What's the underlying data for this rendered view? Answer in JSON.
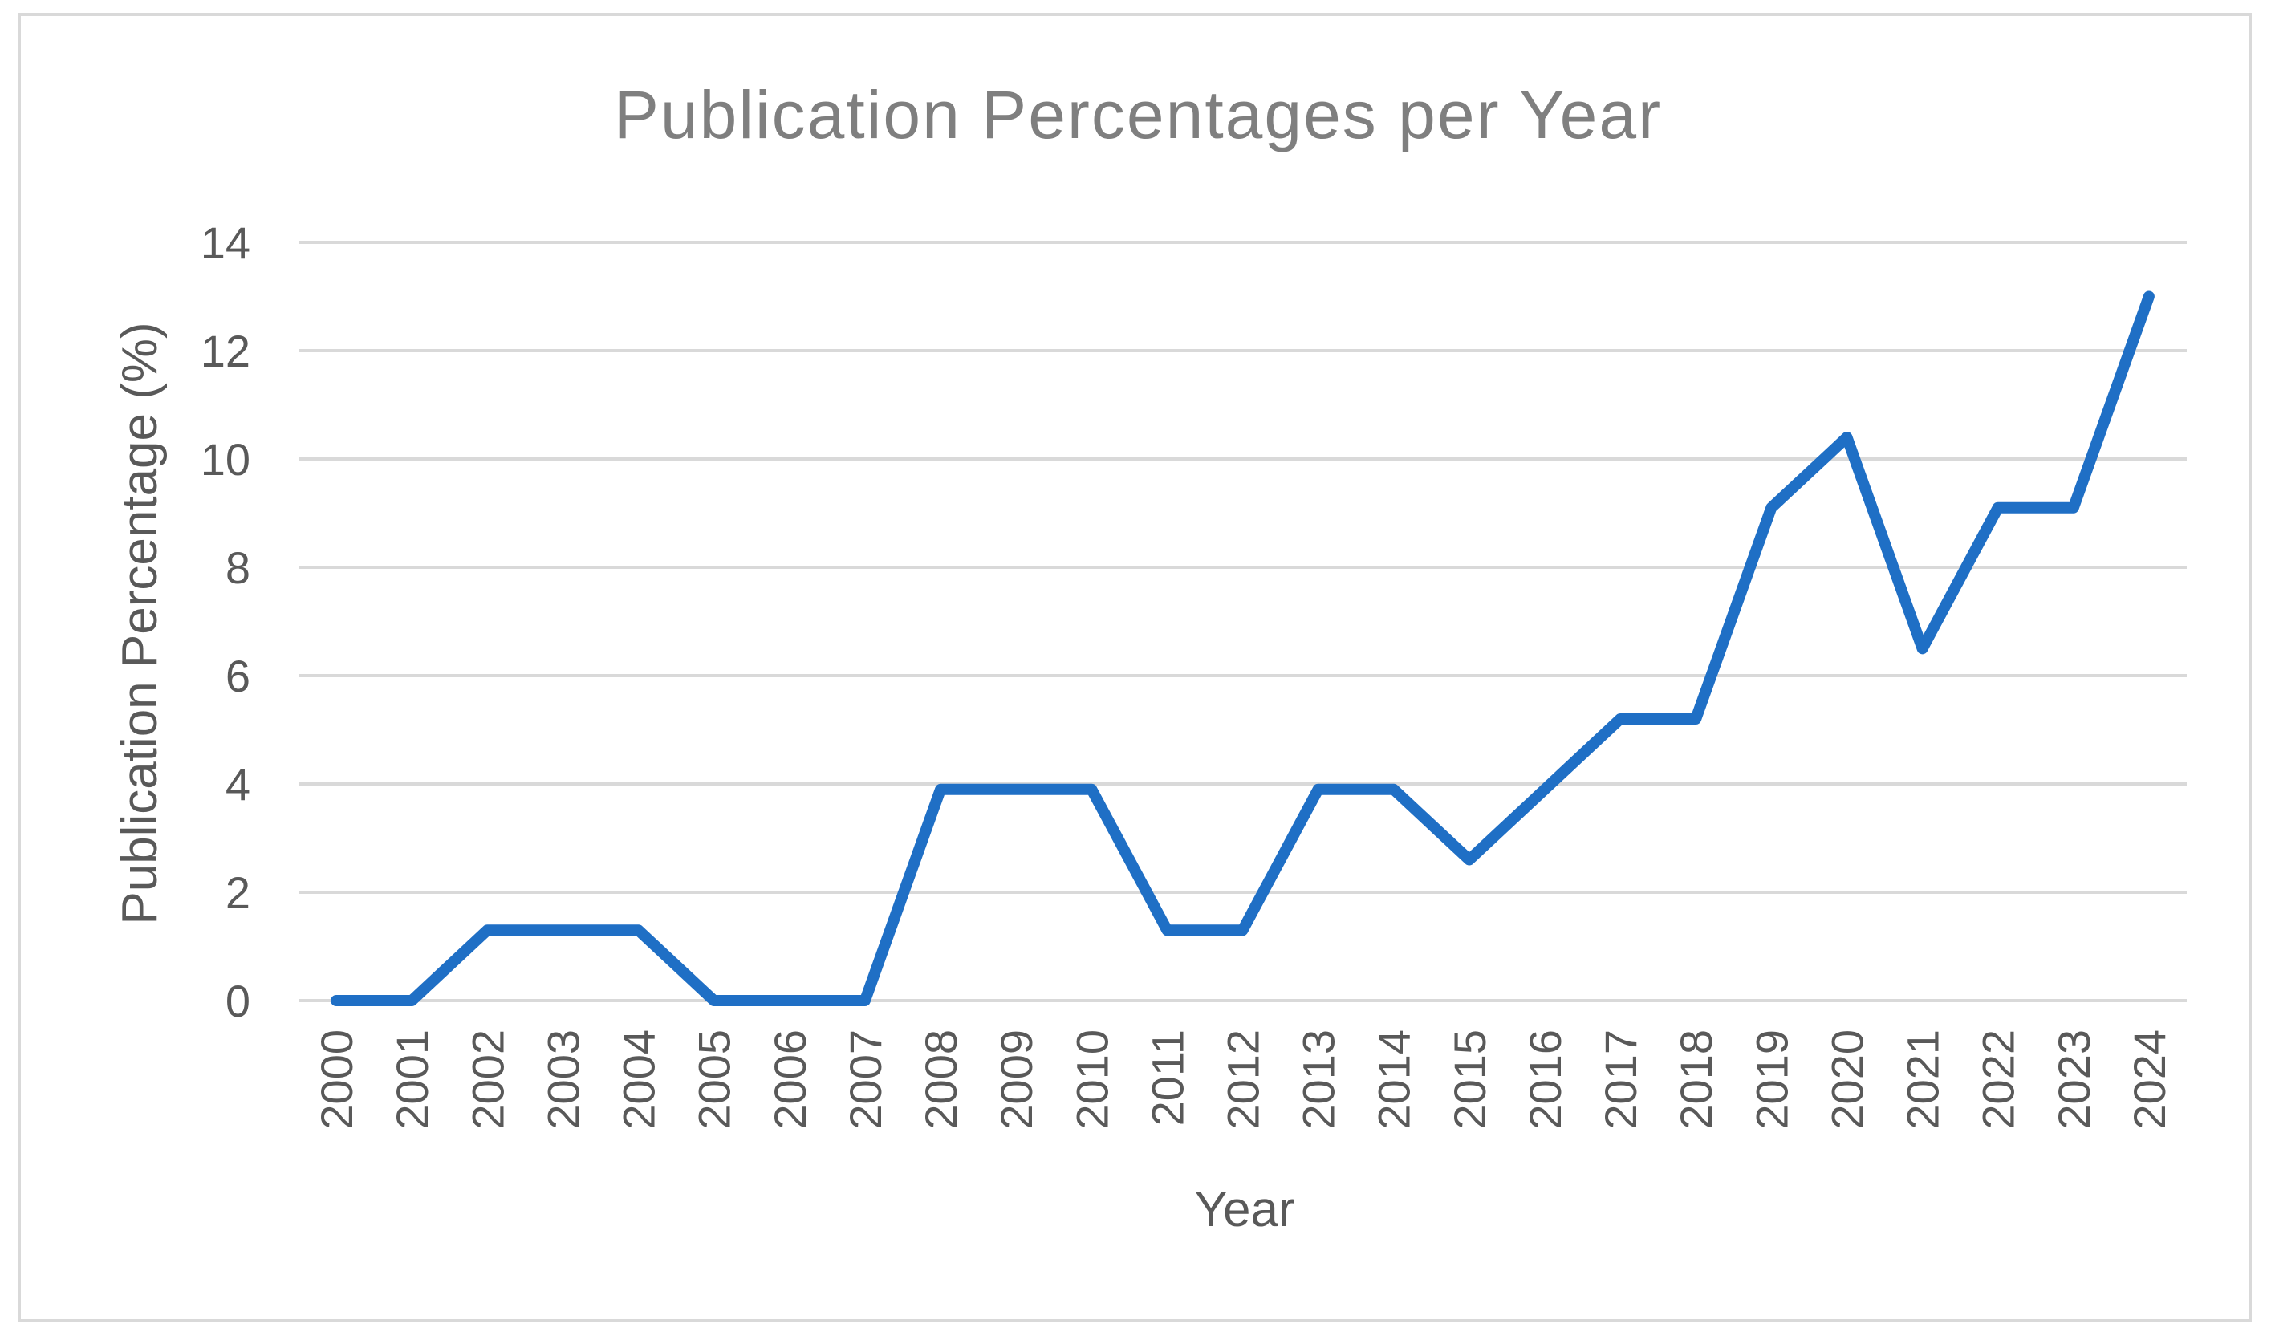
{
  "chart_data": {
    "type": "line",
    "title": "Publication  Percentages  per  Year",
    "xlabel": "Year",
    "ylabel": "Publication Percentage (%)",
    "ylim": [
      0,
      14
    ],
    "yticks": [
      "0",
      "2",
      "4",
      "6",
      "8",
      "10",
      "12",
      "14"
    ],
    "grid": true,
    "legend": "none",
    "categories": [
      "2000",
      "2001",
      "2002",
      "2003",
      "2004",
      "2005",
      "2006",
      "2007",
      "2008",
      "2009",
      "2010",
      "2011",
      "2012",
      "2013",
      "2014",
      "2015",
      "2016",
      "2017",
      "2018",
      "2019",
      "2020",
      "2021",
      "2022",
      "2023",
      "2024"
    ],
    "series": [
      {
        "color": "#1f6fc5",
        "values": [
          0,
          0,
          1.3,
          1.3,
          1.3,
          0,
          0,
          0,
          3.9,
          3.9,
          3.9,
          1.3,
          1.3,
          3.9,
          3.9,
          2.6,
          3.9,
          5.2,
          5.2,
          9.1,
          10.4,
          6.5,
          9.1,
          9.1,
          13
        ]
      }
    ]
  }
}
